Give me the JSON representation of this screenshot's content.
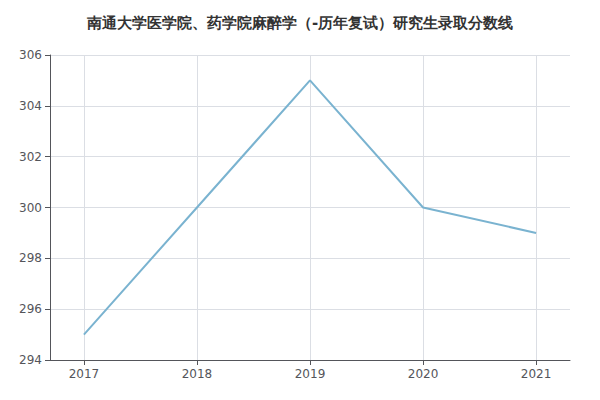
{
  "chart_data": {
    "type": "line",
    "title": "南通大学医学院、药学院麻醉学（-历年复试）研究生录取分数线",
    "x": [
      2017,
      2018,
      2019,
      2020,
      2021
    ],
    "values": [
      295,
      300,
      305,
      300,
      299
    ],
    "color": "#7ab3d0",
    "xlim": [
      2016.7,
      2021.3
    ],
    "xticks": [
      2017,
      2018,
      2019,
      2020,
      2021
    ],
    "ylim": [
      294,
      306
    ],
    "yticks": [
      294,
      296,
      298,
      300,
      302,
      304,
      306
    ],
    "grid": true
  }
}
